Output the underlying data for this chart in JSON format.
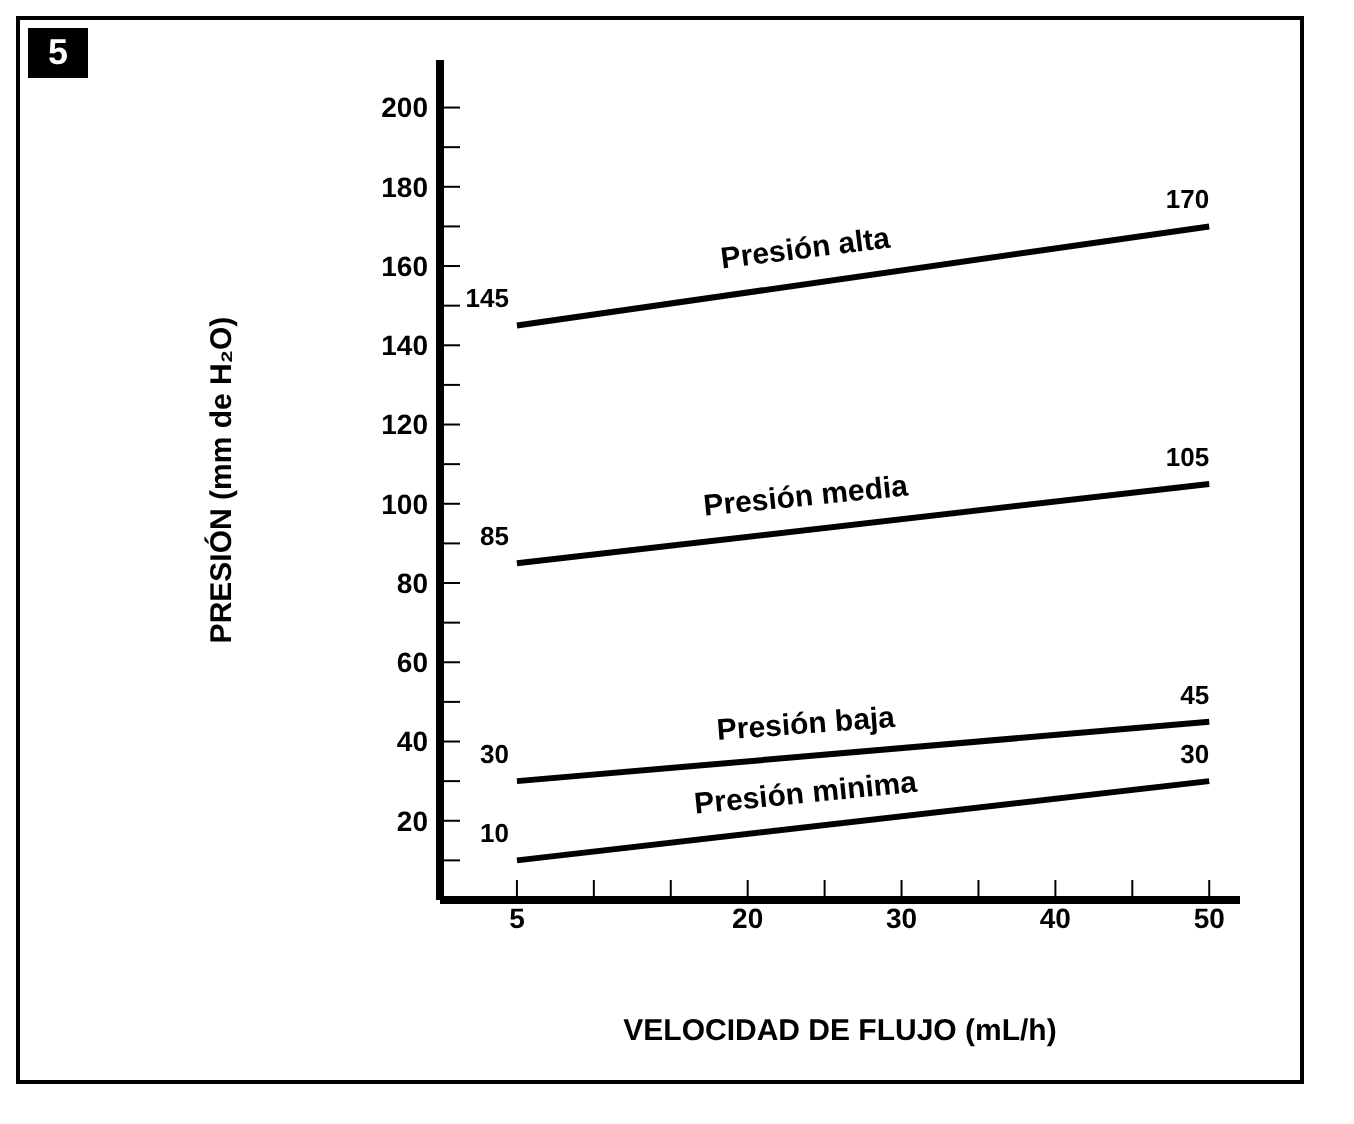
{
  "chart_data": {
    "type": "line",
    "xlabel": "VELOCIDAD DE FLUJO (mL/h)",
    "ylabel": "PRESIÓN (mm de H₂O)",
    "annotations": [
      "5"
    ],
    "x": [
      5,
      50
    ],
    "series": [
      {
        "name": "Presión alta",
        "color": "#000000",
        "values": [
          145,
          170
        ]
      },
      {
        "name": "Presión media",
        "color": "#000000",
        "values": [
          85,
          105
        ]
      },
      {
        "name": "Presión baja",
        "color": "#000000",
        "values": [
          30,
          45
        ]
      },
      {
        "name": "Presión minima",
        "color": "#000000",
        "values": [
          10,
          30
        ]
      }
    ],
    "xlim": [
      0,
      52
    ],
    "xticks": [
      5,
      {
        "value": 10,
        "label": null
      },
      {
        "value": 15,
        "label": null
      },
      20,
      {
        "value": 25,
        "label": null
      },
      30,
      {
        "value": 35,
        "label": null
      },
      40,
      {
        "value": 45,
        "label": null
      },
      50
    ],
    "ylim": [
      0,
      212
    ],
    "yticks": [
      {
        "value": 10,
        "label": null
      },
      20,
      {
        "value": 30,
        "label": null
      },
      40,
      {
        "value": 50,
        "label": null
      },
      60,
      {
        "value": 70,
        "label": null
      },
      80,
      {
        "value": 90,
        "label": null
      },
      100,
      {
        "value": 110,
        "label": null
      },
      120,
      {
        "value": 130,
        "label": null
      },
      140,
      {
        "value": 150,
        "label": null
      },
      160,
      {
        "value": 170,
        "label": null
      },
      180,
      {
        "value": 190,
        "label": null
      },
      200
    ],
    "grid": false,
    "legend": false,
    "marker": "none",
    "line_style": "solid",
    "data_labels": true
  }
}
